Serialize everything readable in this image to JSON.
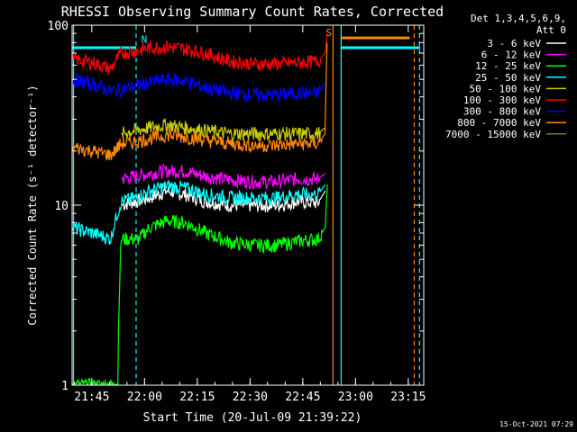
{
  "chart_data": {
    "type": "line",
    "title": "RHESSI Observing Summary Count Rates, Corrected",
    "xlabel": "Start Time (20-Jul-09 21:39:22)",
    "ylabel": "Corrected Count Rate (s⁻¹ detector⁻¹)",
    "yscale": "log",
    "ylim": [
      1,
      100
    ],
    "xlim_minutes": [
      0,
      100
    ],
    "x_ticks": [
      {
        "label": "21:45",
        "minute": 5.6
      },
      {
        "label": "22:00",
        "minute": 20.6
      },
      {
        "label": "22:15",
        "minute": 35.6
      },
      {
        "label": "22:30",
        "minute": 50.6
      },
      {
        "label": "22:45",
        "minute": 65.6
      },
      {
        "label": "23:00",
        "minute": 80.6
      },
      {
        "label": "23:15",
        "minute": 95.6
      }
    ],
    "y_ticks": [
      {
        "label": "100",
        "value": 100
      },
      {
        "label": "10",
        "value": 10
      },
      {
        "label": "1",
        "value": 1
      }
    ],
    "legend_header": [
      "Det 1,3,4,5,6,9,",
      "Att 0"
    ],
    "legend_position": "right",
    "series": [
      {
        "name": "3 - 6 keV",
        "color": "#ffffff",
        "points": [
          [
            14,
            10
          ],
          [
            18,
            10.5
          ],
          [
            22,
            11
          ],
          [
            27,
            12
          ],
          [
            32,
            11.5
          ],
          [
            38,
            10.5
          ],
          [
            45,
            10
          ],
          [
            52,
            10
          ],
          [
            58,
            10
          ],
          [
            64,
            10.5
          ],
          [
            70,
            10.3
          ],
          [
            72,
            12
          ]
        ]
      },
      {
        "name": "6 - 12 keV",
        "color": "#ff00ff",
        "points": [
          [
            14,
            14
          ],
          [
            18,
            14.5
          ],
          [
            22,
            15
          ],
          [
            27,
            15.5
          ],
          [
            32,
            15.5
          ],
          [
            38,
            14.5
          ],
          [
            45,
            13.8
          ],
          [
            52,
            13.5
          ],
          [
            58,
            13.5
          ],
          [
            64,
            14
          ],
          [
            70,
            14
          ],
          [
            72,
            15
          ]
        ]
      },
      {
        "name": "12 - 25 keV",
        "color": "#00ff00",
        "points": [
          [
            0,
            1.0
          ],
          [
            10,
            1.0
          ],
          [
            13,
            1.0
          ],
          [
            14,
            6.5
          ],
          [
            19,
            6.5
          ],
          [
            22,
            7.5
          ],
          [
            27,
            8.2
          ],
          [
            32,
            8
          ],
          [
            38,
            7
          ],
          [
            45,
            6.2
          ],
          [
            52,
            6
          ],
          [
            58,
            6
          ],
          [
            64,
            6.3
          ],
          [
            70,
            6.5
          ],
          [
            72,
            7.5
          ],
          [
            72.6,
            13
          ]
        ]
      },
      {
        "name": "25 - 50 keV",
        "color": "#00ffff",
        "points": [
          [
            0,
            7.5
          ],
          [
            6,
            7
          ],
          [
            11,
            6.5
          ],
          [
            14,
            10.5
          ],
          [
            18,
            11
          ],
          [
            22,
            12
          ],
          [
            27,
            12.8
          ],
          [
            32,
            12.5
          ],
          [
            38,
            11.5
          ],
          [
            45,
            11
          ],
          [
            52,
            11
          ],
          [
            58,
            11
          ],
          [
            64,
            11.5
          ],
          [
            70,
            11.5
          ],
          [
            72,
            13
          ]
        ]
      },
      {
        "name": "50 - 100 keV",
        "color": "#cccc00",
        "points": [
          [
            14,
            25
          ],
          [
            18,
            26
          ],
          [
            22,
            27
          ],
          [
            27,
            28
          ],
          [
            32,
            27
          ],
          [
            38,
            26
          ],
          [
            45,
            25
          ],
          [
            52,
            25
          ],
          [
            58,
            25
          ],
          [
            64,
            25
          ],
          [
            70,
            25
          ],
          [
            72,
            27
          ]
        ]
      },
      {
        "name": "100 - 300 keV",
        "color": "#ff0000",
        "points": [
          [
            0,
            65
          ],
          [
            6,
            62
          ],
          [
            11,
            57
          ],
          [
            14,
            70
          ],
          [
            18,
            72
          ],
          [
            22,
            75
          ],
          [
            27,
            76
          ],
          [
            32,
            74
          ],
          [
            38,
            70
          ],
          [
            45,
            63
          ],
          [
            52,
            61
          ],
          [
            58,
            61
          ],
          [
            64,
            62
          ],
          [
            70,
            63
          ],
          [
            72,
            70
          ],
          [
            72.5,
            90
          ]
        ]
      },
      {
        "name": "300 - 800 keV",
        "color": "#0000ff",
        "points": [
          [
            0,
            50
          ],
          [
            6,
            47
          ],
          [
            11,
            43
          ],
          [
            14,
            44
          ],
          [
            18,
            46
          ],
          [
            22,
            48
          ],
          [
            27,
            50
          ],
          [
            32,
            49
          ],
          [
            38,
            45
          ],
          [
            45,
            42
          ],
          [
            52,
            41
          ],
          [
            58,
            41
          ],
          [
            64,
            42
          ],
          [
            70,
            42
          ],
          [
            72,
            48
          ]
        ]
      },
      {
        "name": "800 - 7000 keV",
        "color": "#ff8800",
        "points": [
          [
            0,
            21
          ],
          [
            6,
            20
          ],
          [
            11,
            19
          ],
          [
            14,
            22
          ],
          [
            18,
            22.5
          ],
          [
            22,
            23.5
          ],
          [
            27,
            24.5
          ],
          [
            32,
            24
          ],
          [
            38,
            23
          ],
          [
            45,
            22
          ],
          [
            52,
            21.5
          ],
          [
            58,
            21.5
          ],
          [
            64,
            22
          ],
          [
            70,
            22
          ],
          [
            72,
            25
          ],
          [
            72.5,
            80
          ]
        ]
      },
      {
        "name": "7000 - 15000 keV",
        "color": "#668800",
        "points": []
      }
    ],
    "attenuator_segments": [
      {
        "x": [
          0,
          18.2
        ],
        "y": 75,
        "color": "#00ffff"
      },
      {
        "x": [
          76.5,
          99
        ],
        "y": 75,
        "color": "#00ffff"
      },
      {
        "x": [
          76.5,
          96
        ],
        "y": 85,
        "color": "#ff8800"
      }
    ],
    "vertical_markers": [
      {
        "minute": 18.2,
        "color": "#00ffff",
        "style": "dashed"
      },
      {
        "minute": 0.4,
        "color": "#00ffff",
        "style": "solid"
      },
      {
        "minute": 76.5,
        "color": "#00ffff",
        "style": "solid"
      },
      {
        "minute": 98.8,
        "color": "#00ffff",
        "style": "dashed"
      },
      {
        "minute": 74.2,
        "color": "#ff8800",
        "style": "solid"
      },
      {
        "minute": 97.3,
        "color": "#ff8800",
        "style": "dashed"
      }
    ],
    "annotations": [
      {
        "text": "N",
        "minute": 20.5,
        "value": 80,
        "color": "#00ffff"
      },
      {
        "text": "S",
        "minute": 73.0,
        "value": 87,
        "color": "#ff8800"
      }
    ]
  },
  "footer": {
    "timestamp": "15-Oct-2021 07:29"
  }
}
